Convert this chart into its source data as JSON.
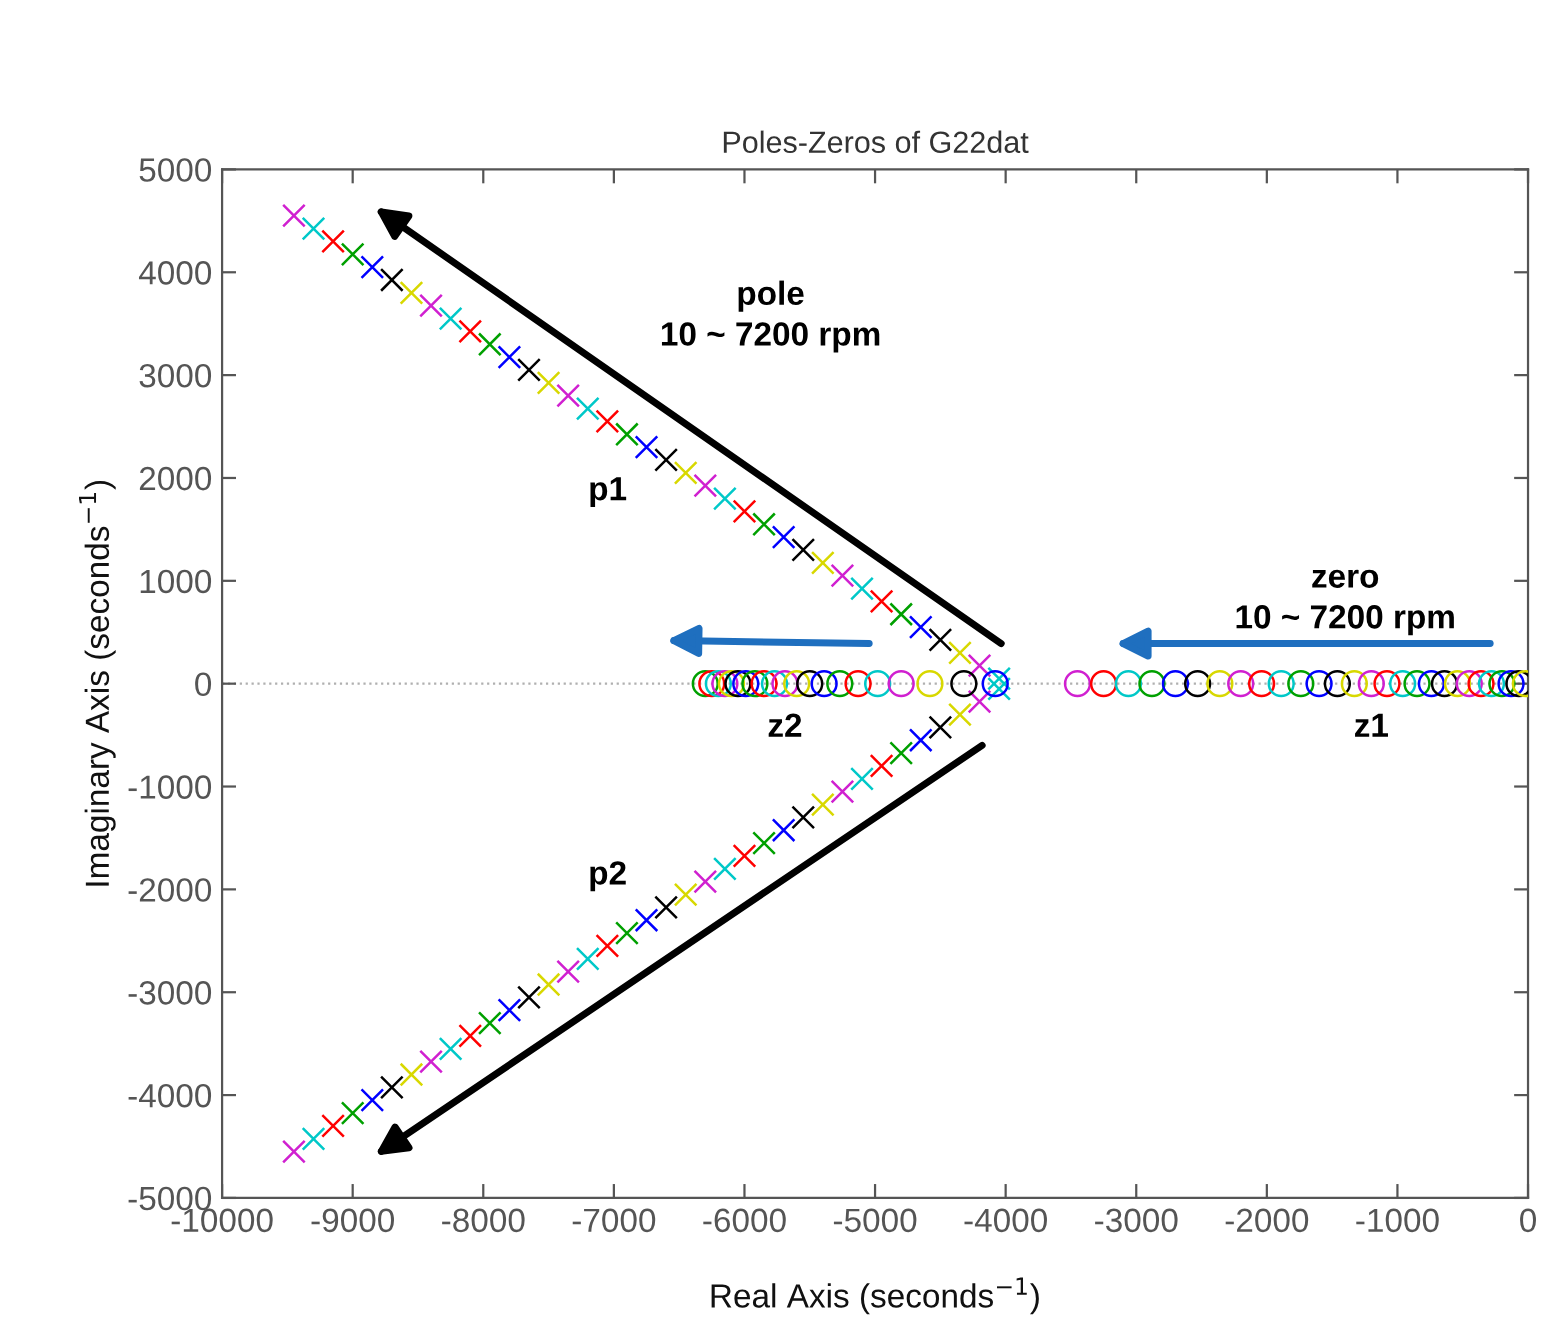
{
  "chart_data": {
    "type": "scatter",
    "title": "Poles-Zeros of G22dat",
    "xlabel": "Real Axis (seconds$^{−1}$)",
    "ylabel": "Imaginary Axis (seconds$^{−1}$)",
    "xlim": [
      -10000,
      0
    ],
    "xticks": [
      -10000,
      -9000,
      -8000,
      -7000,
      -6000,
      -5000,
      -4000,
      -3000,
      -2000,
      -1000,
      0
    ],
    "ylim": [
      -5000,
      5000
    ],
    "yticks": [
      -5000,
      -4000,
      -3000,
      -2000,
      -1000,
      0,
      1000,
      2000,
      3000,
      4000,
      5000
    ],
    "grid": false,
    "legend": false,
    "ref_lines": [
      {
        "axis": "y",
        "value": 0,
        "color": "#b0b0b0",
        "line_style": "dotted"
      }
    ],
    "annotations": [
      "pole\n10 ~ 7200 rpm",
      "zero\n10 ~ 7200 rpm"
    ],
    "series": [
      {
        "name": "p1",
        "marker": "cross",
        "x": [
          -4050,
          -4200,
          -4350,
          -4500,
          -4650,
          -4800,
          -4950,
          -5100,
          -5250,
          -5400,
          -5550,
          -5700,
          -5850,
          -6000,
          -6150,
          -6300,
          -6450,
          -6600,
          -6750,
          -6900,
          -7050,
          -7200,
          -7350,
          -7500,
          -7650,
          -7800,
          -7950,
          -8100,
          -8250,
          -8400,
          -8550,
          -8700,
          -8850,
          -9000,
          -9150,
          -9300,
          -9450
        ],
        "values": [
          50,
          175,
          300,
          425,
          550,
          675,
          800,
          925,
          1050,
          1175,
          1300,
          1425,
          1550,
          1675,
          1800,
          1925,
          2050,
          2175,
          2300,
          2425,
          2550,
          2675,
          2800,
          2925,
          3050,
          3175,
          3300,
          3425,
          3550,
          3675,
          3800,
          3925,
          4050,
          4175,
          4300,
          4425,
          4550
        ],
        "colors": [
          "#00c8c8",
          "#d020d0",
          "#d8d800",
          "#000000",
          "#0000ff",
          "#00a000",
          "#ff0000",
          "#00c8c8",
          "#d020d0",
          "#d8d800",
          "#000000",
          "#0000ff",
          "#00a000",
          "#ff0000",
          "#00c8c8",
          "#d020d0",
          "#d8d800",
          "#000000",
          "#0000ff",
          "#00a000",
          "#ff0000",
          "#00c8c8",
          "#d020d0",
          "#d8d800",
          "#000000",
          "#0000ff",
          "#00a000",
          "#ff0000",
          "#00c8c8",
          "#d020d0",
          "#d8d800",
          "#000000",
          "#0000ff",
          "#00a000",
          "#ff0000",
          "#00c8c8",
          "#d020d0"
        ]
      },
      {
        "name": "p2",
        "marker": "cross",
        "x": [
          -4050,
          -4200,
          -4350,
          -4500,
          -4650,
          -4800,
          -4950,
          -5100,
          -5250,
          -5400,
          -5550,
          -5700,
          -5850,
          -6000,
          -6150,
          -6300,
          -6450,
          -6600,
          -6750,
          -6900,
          -7050,
          -7200,
          -7350,
          -7500,
          -7650,
          -7800,
          -7950,
          -8100,
          -8250,
          -8400,
          -8550,
          -8700,
          -8850,
          -9000,
          -9150,
          -9300,
          -9450
        ],
        "values": [
          -50,
          -175,
          -300,
          -425,
          -550,
          -675,
          -800,
          -925,
          -1050,
          -1175,
          -1300,
          -1425,
          -1550,
          -1675,
          -1800,
          -1925,
          -2050,
          -2175,
          -2300,
          -2425,
          -2550,
          -2675,
          -2800,
          -2925,
          -3050,
          -3175,
          -3300,
          -3425,
          -3550,
          -3675,
          -3800,
          -3925,
          -4050,
          -4175,
          -4300,
          -4425,
          -4550
        ],
        "colors": [
          "#00c8c8",
          "#d020d0",
          "#d8d800",
          "#000000",
          "#0000ff",
          "#00a000",
          "#ff0000",
          "#00c8c8",
          "#d020d0",
          "#d8d800",
          "#000000",
          "#0000ff",
          "#00a000",
          "#ff0000",
          "#00c8c8",
          "#d020d0",
          "#d8d800",
          "#000000",
          "#0000ff",
          "#00a000",
          "#ff0000",
          "#00c8c8",
          "#d020d0",
          "#d8d800",
          "#000000",
          "#0000ff",
          "#00a000",
          "#ff0000",
          "#00c8c8",
          "#d020d0",
          "#d8d800",
          "#000000",
          "#0000ff",
          "#00a000",
          "#ff0000",
          "#00c8c8",
          "#d020d0"
        ]
      },
      {
        "name": "z2",
        "marker": "circle",
        "x": [
          -6300,
          -6250,
          -6200,
          -6150,
          -6100,
          -6050,
          -5990,
          -5920,
          -5850,
          -5770,
          -5690,
          -5600,
          -5500,
          -5390,
          -5270,
          -5130,
          -4980,
          -4800,
          -4580,
          -4320,
          -4080
        ],
        "values": [
          0,
          0,
          0,
          0,
          0,
          0,
          0,
          0,
          0,
          0,
          0,
          0,
          0,
          0,
          0,
          0,
          0,
          0,
          0,
          0,
          0
        ],
        "colors": [
          "#00a000",
          "#ff0000",
          "#00c8c8",
          "#d020d0",
          "#d8d800",
          "#000000",
          "#0000ff",
          "#00a000",
          "#ff0000",
          "#00c8c8",
          "#d020d0",
          "#d8d800",
          "#000000",
          "#0000ff",
          "#00a000",
          "#ff0000",
          "#00c8c8",
          "#d020d0",
          "#d8d800",
          "#000000",
          "#0000ff"
        ]
      },
      {
        "name": "z1",
        "marker": "circle",
        "x": [
          -3450,
          -3250,
          -3060,
          -2880,
          -2700,
          -2530,
          -2360,
          -2200,
          -2040,
          -1890,
          -1740,
          -1600,
          -1460,
          -1330,
          -1200,
          -1080,
          -960,
          -850,
          -740,
          -640,
          -540,
          -450,
          -360,
          -280,
          -200,
          -130,
          -70,
          -20
        ],
        "values": [
          0,
          0,
          0,
          0,
          0,
          0,
          0,
          0,
          0,
          0,
          0,
          0,
          0,
          0,
          0,
          0,
          0,
          0,
          0,
          0,
          0,
          0,
          0,
          0,
          0,
          0,
          0,
          0
        ],
        "colors": [
          "#d020d0",
          "#ff0000",
          "#00c8c8",
          "#00a000",
          "#0000ff",
          "#000000",
          "#d8d800",
          "#d020d0",
          "#ff0000",
          "#00c8c8",
          "#00a000",
          "#0000ff",
          "#000000",
          "#d8d800",
          "#d020d0",
          "#ff0000",
          "#00c8c8",
          "#00a000",
          "#0000ff",
          "#000000",
          "#d8d800",
          "#d020d0",
          "#ff0000",
          "#00c8c8",
          "#00a000",
          "#0000ff",
          "#000000",
          "#d8d800"
        ]
      }
    ]
  }
}
